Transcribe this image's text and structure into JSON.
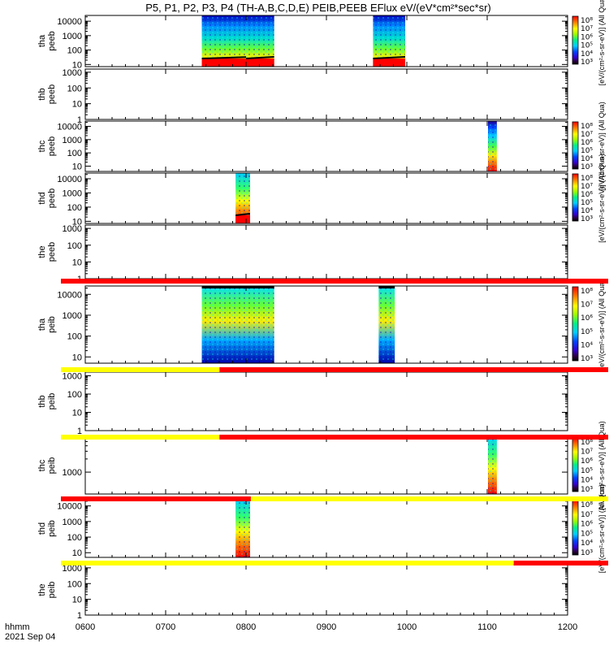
{
  "title": "P5, P1, P2, P3, P4 (TH-A,B,C,D,E) PEIB,PEEB EFlux eV/(eV*cm²*sec*sr)",
  "footer": {
    "label1": "hhmm",
    "label2": "2021 Sep 04"
  },
  "colors": {
    "red": "#ff0000",
    "yellow": "#ffff00",
    "black": "#000000"
  },
  "chart_data": {
    "type": "heatmap",
    "x_range": [
      "0600",
      "1200"
    ],
    "x_ticks": [
      "0600",
      "0700",
      "0800",
      "0900",
      "1000",
      "1100",
      "1200"
    ],
    "colorbar_ticks": [
      "10⁸",
      "10⁷",
      "10⁶",
      "10⁵",
      "10⁴",
      "10³"
    ],
    "panels": [
      {
        "probe": "tha",
        "product": "peeb",
        "ylabel": "tha\npeeb",
        "yticks": [
          "10000",
          "1000",
          "100",
          "10"
        ],
        "y_log_range": [
          0.85,
          4.4
        ],
        "tick_exps": [
          4,
          3,
          2,
          1
        ],
        "blocks": [
          {
            "start": "0745",
            "end": "0808"
          },
          {
            "start": "0800",
            "end": "0835"
          },
          {
            "start": "0958",
            "end": "0998"
          }
        ],
        "colorbar": "10³-10⁸",
        "colorbar_label": "[eV/(cm²-s-sr-eV)] (All Qua)"
      },
      {
        "probe": "thb",
        "product": "peeb",
        "ylabel": "thb\npeeb",
        "yticks": [
          "1000",
          "100",
          "10",
          "1"
        ],
        "y_log_range": [
          0,
          3.2
        ],
        "tick_exps": [
          3,
          2,
          1,
          0
        ],
        "blocks": [],
        "colorbar": "",
        "colorbar_label": ""
      },
      {
        "probe": "thc",
        "product": "peeb",
        "ylabel": "thc\npeeb",
        "yticks": [
          "10000",
          "1000",
          "100",
          "10"
        ],
        "y_log_range": [
          0.6,
          4.4
        ],
        "tick_exps": [
          4,
          3,
          2,
          1
        ],
        "blocks": [
          {
            "start": "1101",
            "end": "1112"
          }
        ],
        "colorbar": "10³-10⁸",
        "colorbar_label": "[eV/(cm²-s-sr-eV)] (All Qua)"
      },
      {
        "probe": "thd",
        "product": "peeb",
        "ylabel": "thd\npeeb",
        "yticks": [
          "10000",
          "1000",
          "100",
          "10"
        ],
        "y_log_range": [
          0.85,
          4.4
        ],
        "tick_exps": [
          4,
          3,
          2,
          1
        ],
        "blocks": [
          {
            "start": "0787",
            "end": "0805"
          }
        ],
        "colorbar": "10³-10⁸",
        "colorbar_label": "[eV/(cm²-s-sr-eV)] (All Qua)"
      },
      {
        "probe": "the",
        "product": "peeb",
        "ylabel": "the\npeeb",
        "yticks": [
          "1000",
          "100",
          "10",
          "1"
        ],
        "y_log_range": [
          0,
          3.2
        ],
        "tick_exps": [
          3,
          2,
          1,
          0
        ],
        "blocks": [],
        "colorbar": "",
        "colorbar_label": ""
      },
      {
        "probe": "tha",
        "product": "peib",
        "ylabel": "tha\npeib",
        "yticks": [
          "10000",
          "1000",
          "100",
          "10"
        ],
        "y_log_range": [
          0.7,
          4.4
        ],
        "tick_exps": [
          4,
          3,
          2,
          1
        ],
        "blocks": [
          {
            "start": "0745",
            "end": "0808"
          },
          {
            "start": "0800",
            "end": "0835"
          },
          {
            "start": "0965",
            "end": "0985"
          }
        ],
        "colorbar": "10³-10⁸",
        "colorbar_label": "[eV/(cm²-s-sr-eV)] (All Qua)"
      },
      {
        "probe": "thb",
        "product": "peib",
        "ylabel": "thb\npeib",
        "yticks": [
          "1000",
          "100",
          "10",
          "1"
        ],
        "y_log_range": [
          0,
          3.2
        ],
        "tick_exps": [
          3,
          2,
          1,
          0
        ],
        "blocks": [],
        "colorbar": "",
        "colorbar_label": ""
      },
      {
        "probe": "thc",
        "product": "peib",
        "ylabel": "thc\npeib",
        "yticks": [
          "1000"
        ],
        "y_log_range": [
          2.5,
          3.8
        ],
        "tick_exps": [
          3
        ],
        "blocks": [
          {
            "start": "1101",
            "end": "1112"
          }
        ],
        "colorbar": "10³-10⁸",
        "colorbar_label": "[eV/(cm²-s-sr-eV)] (All Qua)"
      },
      {
        "probe": "thd",
        "product": "peib",
        "ylabel": "thd\npeib",
        "yticks": [
          "10000",
          "1000",
          "100",
          "10"
        ],
        "y_log_range": [
          0.7,
          4.4
        ],
        "tick_exps": [
          4,
          3,
          2,
          1
        ],
        "blocks": [
          {
            "start": "0787",
            "end": "0805"
          }
        ],
        "colorbar": "10³-10⁸",
        "colorbar_label": "[eV/(cm²-s-sr-eV)] (All Qua)"
      },
      {
        "probe": "the",
        "product": "peib",
        "ylabel": "the\npeib",
        "yticks": [
          "1000",
          "100",
          "10",
          "1"
        ],
        "y_log_range": [
          0,
          3.2
        ],
        "tick_exps": [
          3,
          2,
          1,
          0
        ],
        "blocks": [],
        "colorbar": "",
        "colorbar_label": ""
      }
    ],
    "status_bars": [
      {
        "after_panel": 4,
        "segments": [
          {
            "start": "0600",
            "end": "1200",
            "color": "red"
          }
        ]
      },
      {
        "after_panel": 5,
        "segments": [
          {
            "start": "0600",
            "end": "0767",
            "color": "yellow"
          },
          {
            "start": "0767",
            "end": "1200",
            "color": "red"
          }
        ]
      },
      {
        "after_panel": 6,
        "segments": [
          {
            "start": "0600",
            "end": "0767",
            "color": "yellow"
          },
          {
            "start": "0767",
            "end": "1200",
            "color": "red"
          }
        ]
      },
      {
        "after_panel": 7,
        "segments": [
          {
            "start": "0600",
            "end": "0806",
            "color": "red"
          },
          {
            "start": "0806",
            "end": "1200",
            "color": "yellow"
          }
        ]
      },
      {
        "after_panel": 8,
        "segments": [
          {
            "start": "0600",
            "end": "1133",
            "color": "yellow"
          },
          {
            "start": "1133",
            "end": "1200",
            "color": "red"
          }
        ]
      }
    ]
  }
}
